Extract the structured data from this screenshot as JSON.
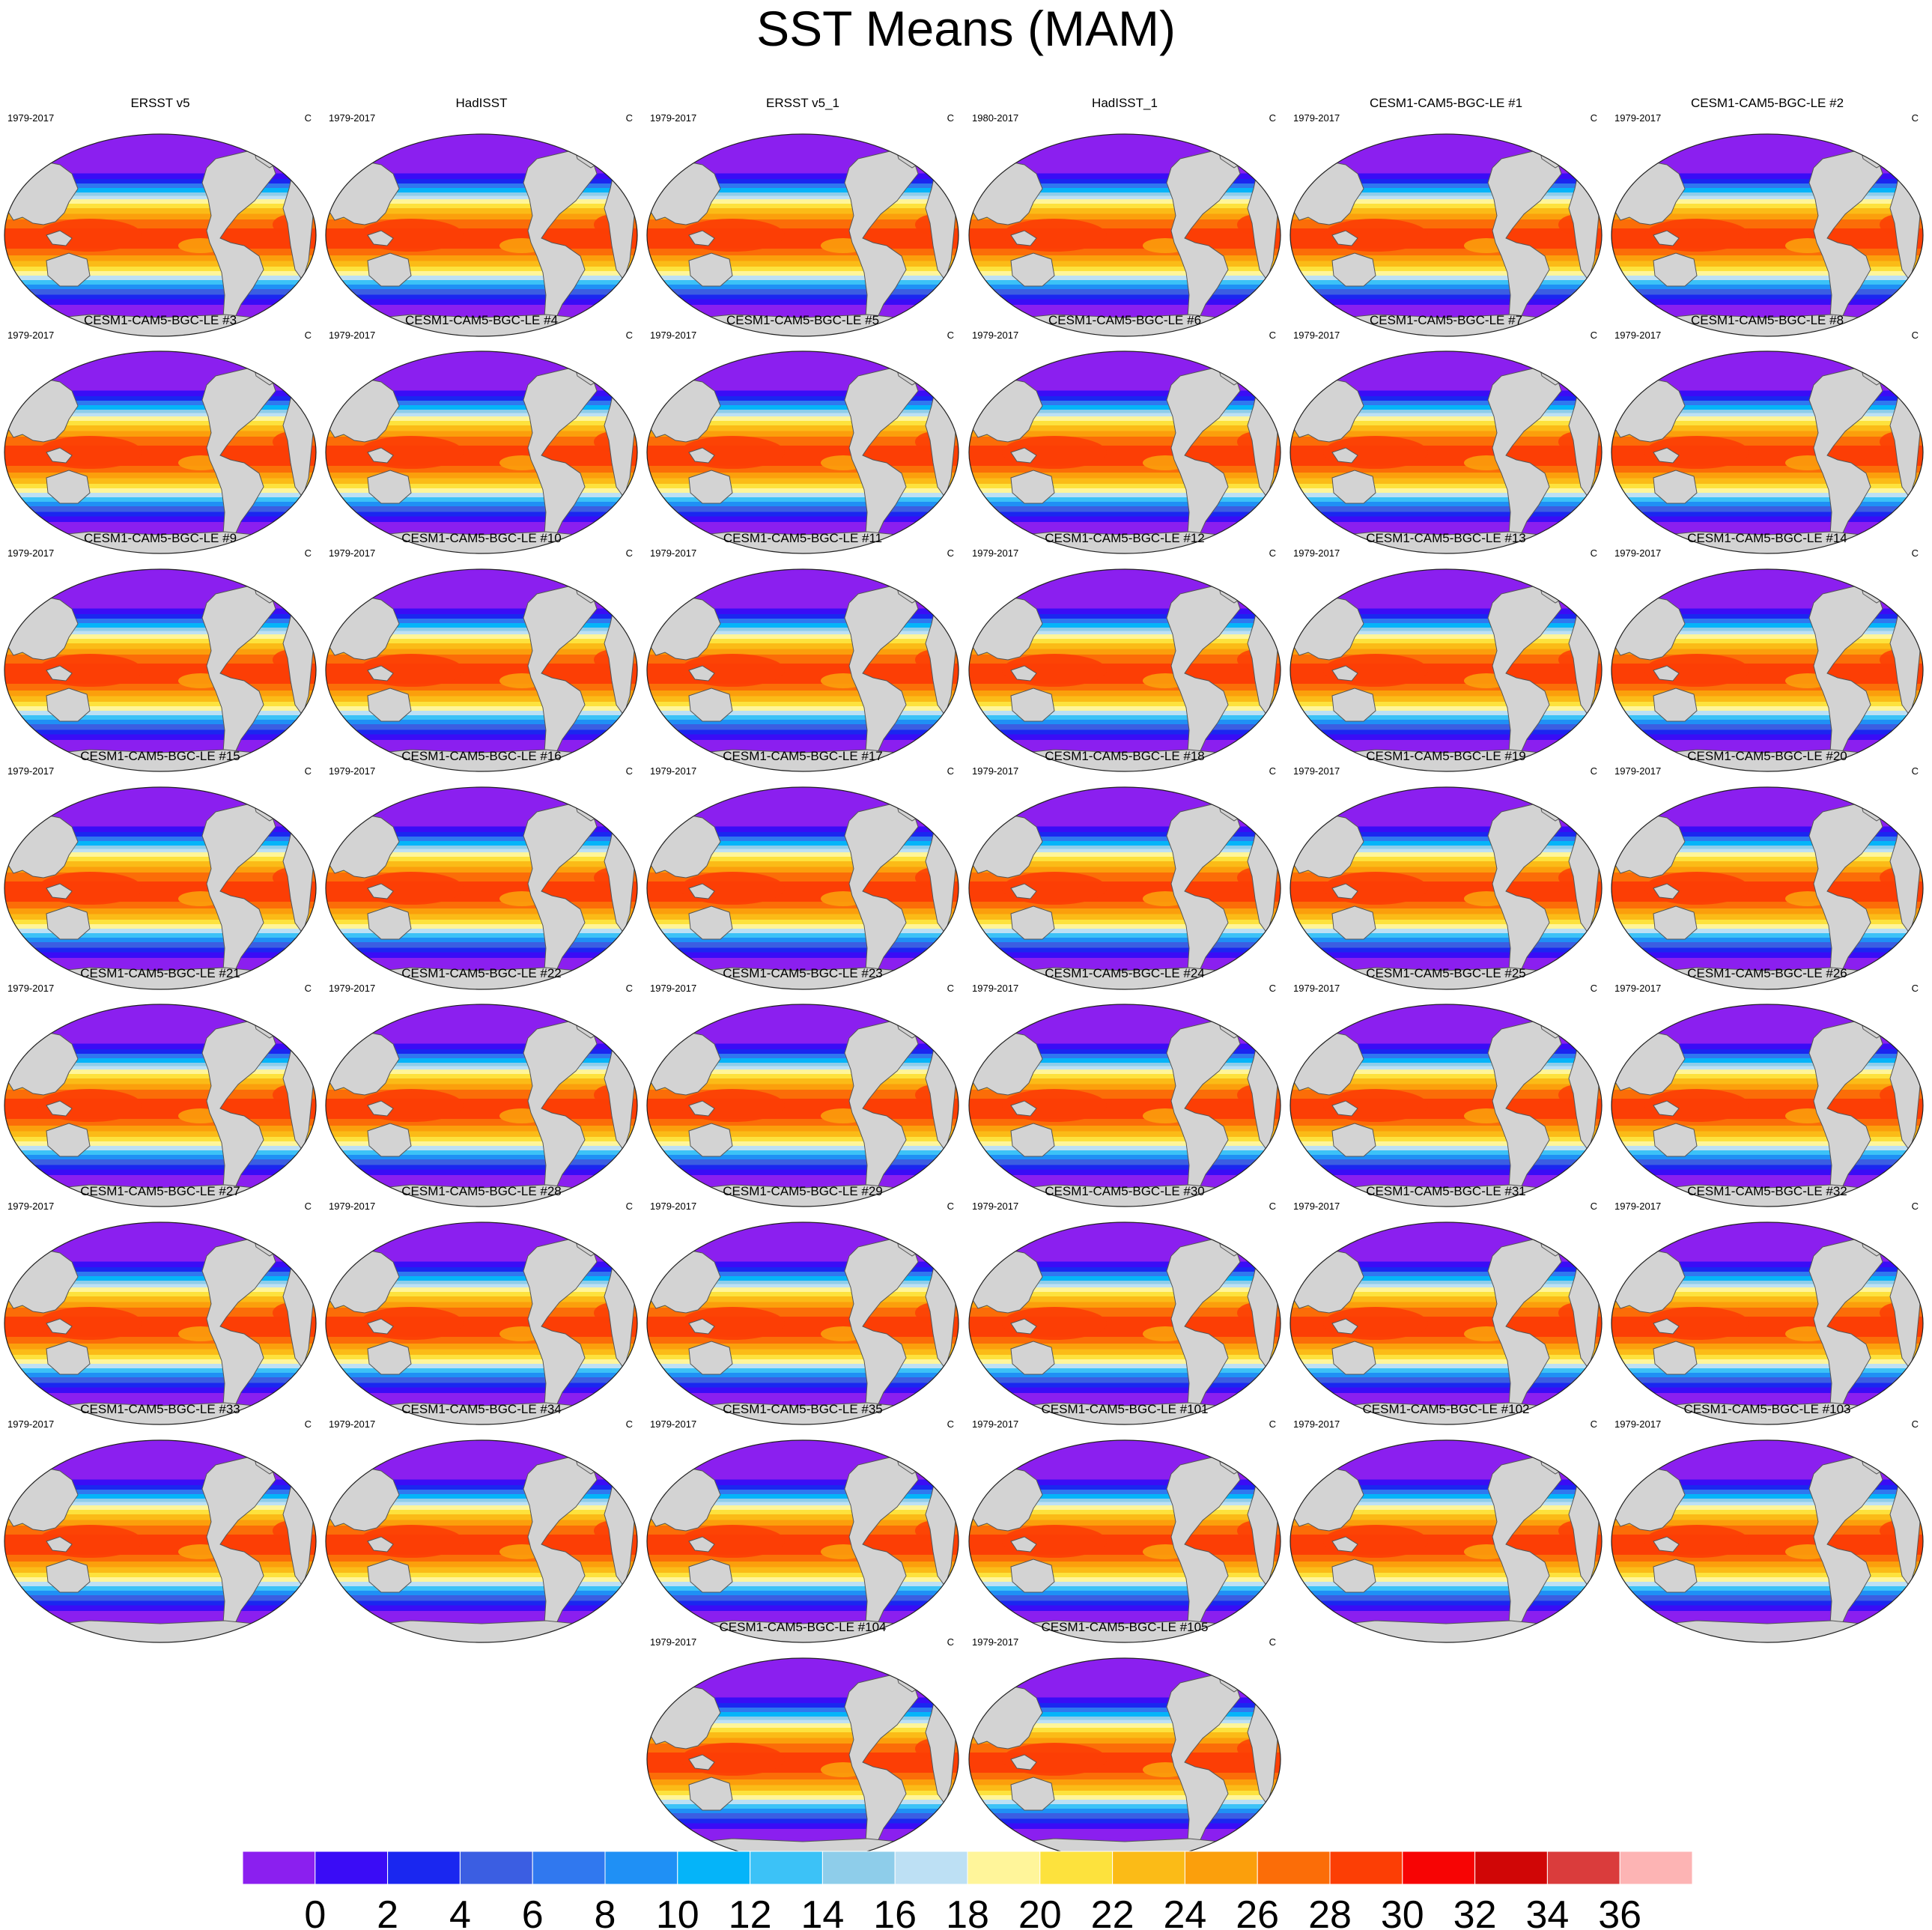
{
  "title": "SST Means (MAM)",
  "chart_data": {
    "type": "heatmap",
    "title": "SST Means (MAM)",
    "unit": "C",
    "colorbar": {
      "ticks": [
        0,
        2,
        4,
        6,
        8,
        10,
        12,
        14,
        16,
        18,
        20,
        22,
        24,
        26,
        28,
        30,
        32,
        34,
        36
      ],
      "colors": [
        "#8b1fef",
        "#3a0cf6",
        "#1a27f0",
        "#3b5ee2",
        "#3078ef",
        "#1f90f5",
        "#05b4f9",
        "#3cc2f7",
        "#8ecdea",
        "#bde0f4",
        "#fff59a",
        "#fde23d",
        "#fbbb17",
        "#fb9f0c",
        "#fb6d08",
        "#fc3e05",
        "#f70404",
        "#d00606",
        "#da3c3c",
        "#fdb4b4"
      ]
    },
    "panels": [
      {
        "name": "ERSST v5",
        "period": "1979-2017"
      },
      {
        "name": "HadISST",
        "period": "1979-2017"
      },
      {
        "name": "ERSST v5_1",
        "period": "1979-2017"
      },
      {
        "name": "HadISST_1",
        "period": "1980-2017"
      },
      {
        "name": "CESM1-CAM5-BGC-LE #1",
        "period": "1979-2017"
      },
      {
        "name": "CESM1-CAM5-BGC-LE #2",
        "period": "1979-2017"
      },
      {
        "name": "CESM1-CAM5-BGC-LE #3",
        "period": "1979-2017"
      },
      {
        "name": "CESM1-CAM5-BGC-LE #4",
        "period": "1979-2017"
      },
      {
        "name": "CESM1-CAM5-BGC-LE #5",
        "period": "1979-2017"
      },
      {
        "name": "CESM1-CAM5-BGC-LE #6",
        "period": "1979-2017"
      },
      {
        "name": "CESM1-CAM5-BGC-LE #7",
        "period": "1979-2017"
      },
      {
        "name": "CESM1-CAM5-BGC-LE #8",
        "period": "1979-2017"
      },
      {
        "name": "CESM1-CAM5-BGC-LE #9",
        "period": "1979-2017"
      },
      {
        "name": "CESM1-CAM5-BGC-LE #10",
        "period": "1979-2017"
      },
      {
        "name": "CESM1-CAM5-BGC-LE #11",
        "period": "1979-2017"
      },
      {
        "name": "CESM1-CAM5-BGC-LE #12",
        "period": "1979-2017"
      },
      {
        "name": "CESM1-CAM5-BGC-LE #13",
        "period": "1979-2017"
      },
      {
        "name": "CESM1-CAM5-BGC-LE #14",
        "period": "1979-2017"
      },
      {
        "name": "CESM1-CAM5-BGC-LE #15",
        "period": "1979-2017"
      },
      {
        "name": "CESM1-CAM5-BGC-LE #16",
        "period": "1979-2017"
      },
      {
        "name": "CESM1-CAM5-BGC-LE #17",
        "period": "1979-2017"
      },
      {
        "name": "CESM1-CAM5-BGC-LE #18",
        "period": "1979-2017"
      },
      {
        "name": "CESM1-CAM5-BGC-LE #19",
        "period": "1979-2017"
      },
      {
        "name": "CESM1-CAM5-BGC-LE #20",
        "period": "1979-2017"
      },
      {
        "name": "CESM1-CAM5-BGC-LE #21",
        "period": "1979-2017"
      },
      {
        "name": "CESM1-CAM5-BGC-LE #22",
        "period": "1979-2017"
      },
      {
        "name": "CESM1-CAM5-BGC-LE #23",
        "period": "1979-2017"
      },
      {
        "name": "CESM1-CAM5-BGC-LE #24",
        "period": "1979-2017"
      },
      {
        "name": "CESM1-CAM5-BGC-LE #25",
        "period": "1979-2017"
      },
      {
        "name": "CESM1-CAM5-BGC-LE #26",
        "period": "1979-2017"
      },
      {
        "name": "CESM1-CAM5-BGC-LE #27",
        "period": "1979-2017"
      },
      {
        "name": "CESM1-CAM5-BGC-LE #28",
        "period": "1979-2017"
      },
      {
        "name": "CESM1-CAM5-BGC-LE #29",
        "period": "1979-2017"
      },
      {
        "name": "CESM1-CAM5-BGC-LE #30",
        "period": "1979-2017"
      },
      {
        "name": "CESM1-CAM5-BGC-LE #31",
        "period": "1979-2017"
      },
      {
        "name": "CESM1-CAM5-BGC-LE #32",
        "period": "1979-2017"
      },
      {
        "name": "CESM1-CAM5-BGC-LE #33",
        "period": "1979-2017"
      },
      {
        "name": "CESM1-CAM5-BGC-LE #34",
        "period": "1979-2017"
      },
      {
        "name": "CESM1-CAM5-BGC-LE #35",
        "period": "1979-2017"
      },
      {
        "name": "CESM1-CAM5-BGC-LE #101",
        "period": "1979-2017"
      },
      {
        "name": "CESM1-CAM5-BGC-LE #102",
        "period": "1979-2017"
      },
      {
        "name": "CESM1-CAM5-BGC-LE #103",
        "period": "1979-2017"
      },
      {
        "name": "CESM1-CAM5-BGC-LE #104",
        "period": "1979-2017"
      },
      {
        "name": "CESM1-CAM5-BGC-LE #105",
        "period": "1979-2017"
      }
    ]
  }
}
